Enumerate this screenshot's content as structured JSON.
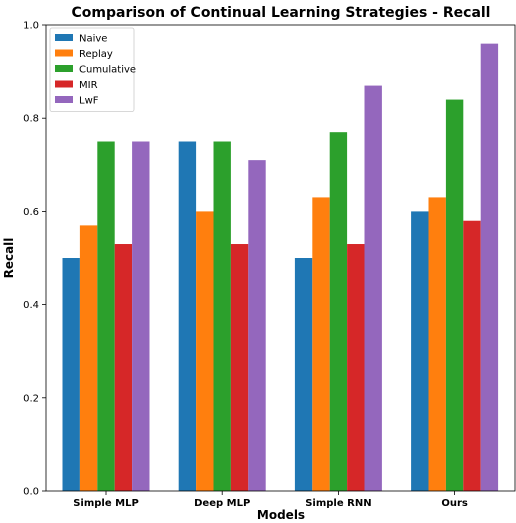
{
  "chart_data": {
    "type": "bar",
    "title": "Comparison of Continual Learning Strategies - Recall",
    "xlabel": "Models",
    "ylabel": "Recall",
    "categories": [
      "Simple MLP",
      "Deep MLP",
      "Simple RNN",
      "Ours"
    ],
    "ylim": [
      0,
      1.0
    ],
    "yticks": [
      "0.0",
      "0.2",
      "0.4",
      "0.6",
      "0.8",
      "1.0"
    ],
    "grid": false,
    "legend_position": "top-left",
    "series": [
      {
        "name": "Naive",
        "color": "#1f77b4",
        "values": [
          0.5,
          0.75,
          0.5,
          0.6
        ]
      },
      {
        "name": "Replay",
        "color": "#ff7f0e",
        "values": [
          0.57,
          0.6,
          0.63,
          0.63
        ]
      },
      {
        "name": "Cumulative",
        "color": "#2ca02c",
        "values": [
          0.75,
          0.75,
          0.77,
          0.84
        ]
      },
      {
        "name": "MIR",
        "color": "#d62728",
        "values": [
          0.53,
          0.53,
          0.53,
          0.58
        ]
      },
      {
        "name": "LwF",
        "color": "#9467bd",
        "values": [
          0.75,
          0.71,
          0.87,
          0.96
        ]
      }
    ]
  }
}
